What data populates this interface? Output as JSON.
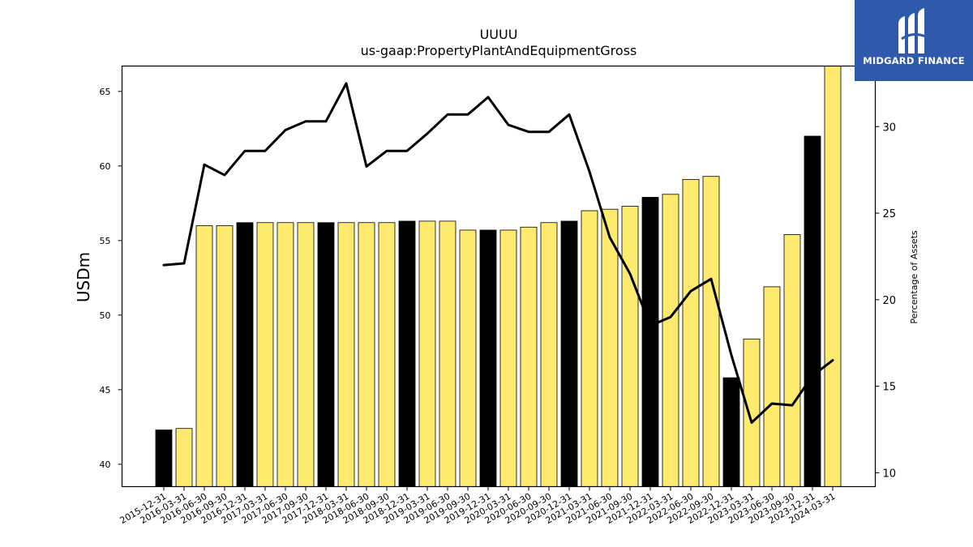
{
  "chart_data": {
    "type": "bar+line",
    "title": "UUUU",
    "subtitle": "us-gaap:PropertyPlantAndEquipmentGross",
    "ylabel_left": "USDm",
    "ylabel_right": "Percentage of Assets",
    "categories": [
      "2015-12-31",
      "2016-03-31",
      "2016-06-30",
      "2016-09-30",
      "2016-12-31",
      "2017-03-31",
      "2017-06-30",
      "2017-09-30",
      "2017-12-31",
      "2018-03-31",
      "2018-06-30",
      "2018-09-30",
      "2018-12-31",
      "2019-03-31",
      "2019-06-30",
      "2019-09-30",
      "2019-12-31",
      "2020-03-31",
      "2020-06-30",
      "2020-09-30",
      "2020-12-31",
      "2021-03-31",
      "2021-06-30",
      "2021-09-30",
      "2021-12-31",
      "2022-03-31",
      "2022-06-30",
      "2022-09-30",
      "2022-12-31",
      "2023-03-31",
      "2023-06-30",
      "2023-09-30",
      "2023-12-31",
      "2024-03-31"
    ],
    "series": [
      {
        "type": "bar",
        "values": [
          42.3,
          42.4,
          56.0,
          56.0,
          56.2,
          56.2,
          56.2,
          56.2,
          56.2,
          56.2,
          56.2,
          56.2,
          56.3,
          56.3,
          56.3,
          55.7,
          55.7,
          55.7,
          55.9,
          56.2,
          56.3,
          57.0,
          57.1,
          57.3,
          57.9,
          58.1,
          59.1,
          59.3,
          45.8,
          48.4,
          51.9,
          55.4,
          62.0,
          66.7
        ],
        "highlight": [
          true,
          false,
          false,
          false,
          true,
          false,
          false,
          false,
          true,
          false,
          false,
          false,
          true,
          false,
          false,
          false,
          true,
          false,
          false,
          false,
          true,
          false,
          false,
          false,
          true,
          false,
          false,
          false,
          true,
          false,
          false,
          false,
          true,
          false
        ]
      },
      {
        "type": "line",
        "values": [
          22.0,
          22.1,
          27.8,
          27.2,
          28.6,
          28.6,
          29.8,
          30.3,
          30.3,
          32.5,
          27.7,
          28.6,
          28.6,
          29.6,
          30.7,
          30.7,
          31.7,
          30.1,
          29.7,
          29.7,
          30.7,
          27.4,
          23.6,
          21.5,
          18.5,
          19.0,
          20.5,
          21.2,
          16.8,
          12.9,
          14.0,
          13.9,
          15.6,
          16.5
        ]
      }
    ],
    "ylim_left": [
      38.5,
      66.7
    ],
    "yticks_left": [
      40,
      45,
      50,
      55,
      60,
      65
    ],
    "ylim_right": [
      9.2,
      33.5
    ],
    "yticks_right": [
      10,
      15,
      20,
      25,
      30
    ],
    "grid": false,
    "colors": {
      "bar": "#fdea6f",
      "bar_highlight": "#000000",
      "bar_edge": "#000000",
      "line": "#000000"
    }
  },
  "logo": {
    "text": "MIDGARD FINANCE",
    "color": "#2f5aab"
  }
}
